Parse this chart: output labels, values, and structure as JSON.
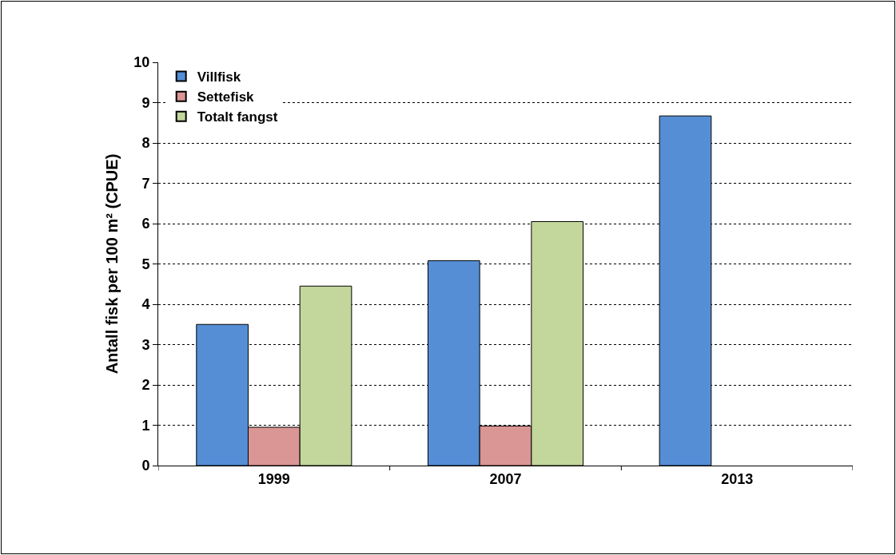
{
  "chart_data": {
    "type": "bar",
    "ylabel": "Antall fisk per 100 m² (CPUE)",
    "categories": [
      "1999",
      "2007",
      "2013"
    ],
    "series": [
      {
        "name": "Villfisk",
        "color": "#558ed5",
        "values": [
          3.5,
          5.08,
          8.67
        ]
      },
      {
        "name": "Settefisk",
        "color": "#d99694",
        "values": [
          0.95,
          0.98,
          null
        ]
      },
      {
        "name": "Totalt fangst",
        "color": "#c3d69b",
        "values": [
          4.45,
          6.05,
          null
        ]
      }
    ],
    "ylim": [
      0,
      10
    ],
    "yticks": [
      0,
      1,
      2,
      3,
      4,
      5,
      6,
      7,
      8,
      9,
      10
    ],
    "grid": "y",
    "legend": "top left"
  }
}
